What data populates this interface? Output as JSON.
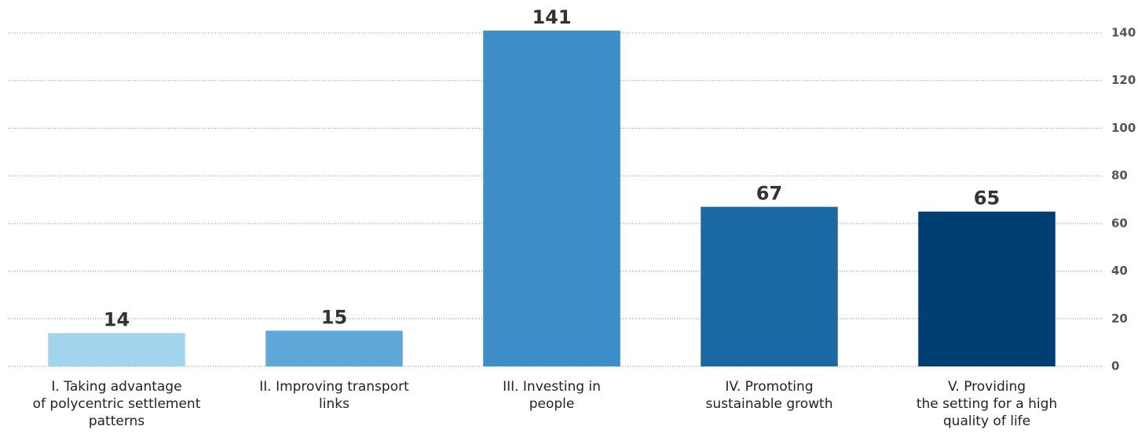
{
  "chart_data": {
    "type": "bar",
    "categories": [
      [
        "I. Taking advantage",
        "of polycentric settlement",
        "patterns"
      ],
      [
        "II. Improving transport",
        "links"
      ],
      [
        "III. Investing in",
        "people"
      ],
      [
        "IV. Promoting",
        "sustainable growth"
      ],
      [
        "V. Providing",
        "the setting for a high",
        "quality of life"
      ]
    ],
    "values": [
      14,
      15,
      141,
      67,
      65
    ],
    "colors": [
      "#a3d4ee",
      "#5ea8d9",
      "#3d8dc8",
      "#1a69a4",
      "#003f72"
    ],
    "ylim": [
      0,
      140
    ],
    "yticks": [
      0,
      20,
      40,
      60,
      80,
      100,
      120,
      140
    ],
    "grid": true
  }
}
